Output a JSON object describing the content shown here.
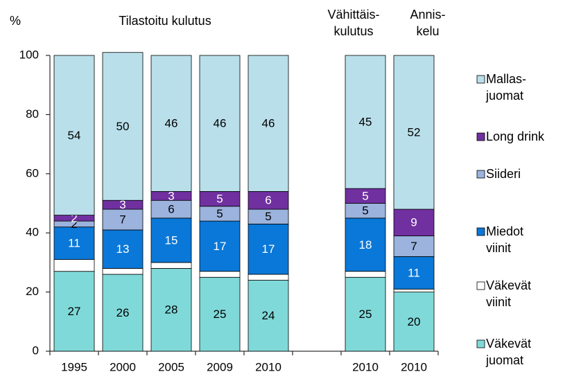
{
  "chart_data": {
    "type": "stacked_bar",
    "y_unit_label": "%",
    "group_labels": [
      "Tilastoitu kulutus",
      "Vähittäis-\nkulutus",
      "Annis-\nkelu"
    ],
    "categories": [
      "1995",
      "2000",
      "2005",
      "2009",
      "2010",
      null,
      "2010",
      "2010"
    ],
    "series": [
      {
        "name": "Väkevät\njuomat",
        "color": "#80d9d9",
        "label_color": "#000000",
        "data_labels": true,
        "values": [
          27,
          26,
          28,
          25,
          24,
          null,
          25,
          20
        ]
      },
      {
        "name": "Väkevät\nviinit",
        "color": "#ffffff",
        "label_color": "#000000",
        "data_labels": false,
        "values": [
          4,
          2,
          2,
          2,
          2,
          null,
          2,
          1
        ]
      },
      {
        "name": "Miedot\nviinit",
        "color": "#0a78d8",
        "label_color": "#ffffff",
        "data_labels": true,
        "values": [
          11,
          13,
          15,
          17,
          17,
          null,
          18,
          11
        ]
      },
      {
        "name": "Siideri",
        "color": "#9bb3dd",
        "label_color": "#000000",
        "data_labels": true,
        "values": [
          2,
          7,
          6,
          5,
          5,
          null,
          5,
          7
        ]
      },
      {
        "name": "Long drink",
        "color": "#7030a0",
        "label_color": "#ffffff",
        "data_labels": true,
        "values": [
          2,
          3,
          3,
          5,
          6,
          null,
          5,
          9
        ]
      },
      {
        "name": "Mallas-\njuomat",
        "color": "#b9dfea",
        "label_color": "#000000",
        "data_labels": true,
        "values": [
          54,
          50,
          46,
          46,
          46,
          null,
          45,
          52
        ]
      }
    ],
    "ylim": [
      0,
      100
    ],
    "yticks": [
      0,
      20,
      40,
      60,
      80,
      100
    ],
    "grid": false,
    "legend": "right"
  }
}
